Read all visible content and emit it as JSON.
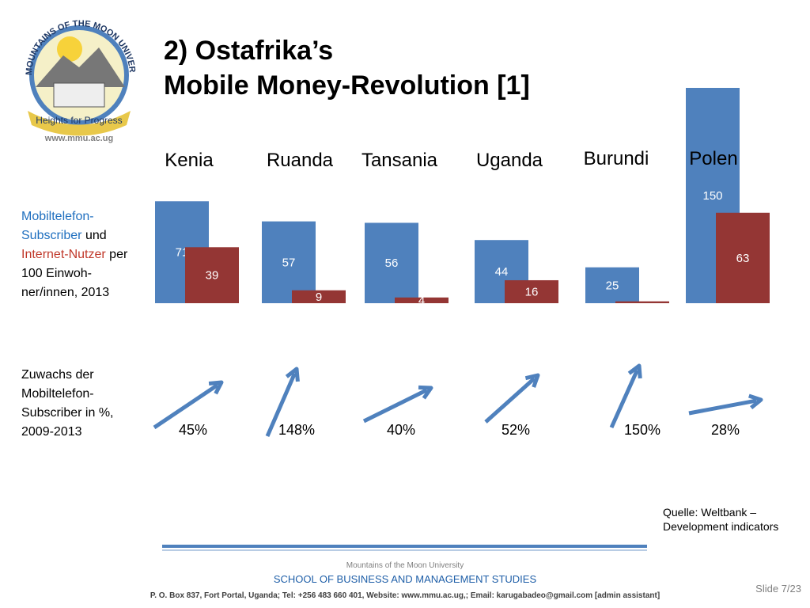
{
  "header": {
    "title_line1": "2) Ostafrika’s",
    "title_line2": "Mobile Money-Revolution [1]"
  },
  "logo": {
    "arc_text": "MOUNTAINS OF THE MOON UNIVERSITY",
    "motto": "Heights for Progress",
    "url": "www.mmu.ac.ug"
  },
  "chart_data": {
    "type": "bar",
    "categories": [
      "Kenia",
      "Ruanda",
      "Tansania",
      "Uganda",
      "Burundi",
      "Polen"
    ],
    "series": [
      {
        "name": "Mobiltelefon-Subscriber",
        "color": "#4f81bd",
        "values": [
          71,
          57,
          56,
          44,
          25,
          150
        ]
      },
      {
        "name": "Internet-Nutzer",
        "color": "#943634",
        "values": [
          39,
          9,
          4,
          16,
          1.3,
          63
        ],
        "value_labels": [
          "39",
          "9",
          "4",
          "16",
          null,
          "63"
        ]
      }
    ],
    "label_join": "und",
    "label_rest": "per 100 Einwoh-ner/innen, 2013",
    "ylim": [
      0,
      150
    ],
    "growth": {
      "label": "Zuwachs der Mobiltelefon-Subscriber in %, 2009-2013",
      "values": [
        45,
        148,
        40,
        52,
        150,
        28
      ],
      "value_labels": [
        "45%",
        "148%",
        "40%",
        "52%",
        "150%",
        "28%"
      ],
      "color": "#4f81bd"
    }
  },
  "source": "Quelle: Weltbank – Development indicators",
  "footer": {
    "university": "Mountains of the Moon University",
    "school": "SCHOOL OF BUSINESS AND MANAGEMENT STUDIES",
    "address": "P. O. Box 837,  Fort Portal, Uganda; Tel: +256 483 660 401, Website: www.mmu.ac.ug,; Email: karugabadeo@gmail.com [admin assistant]",
    "slide": "Slide 7/23"
  }
}
